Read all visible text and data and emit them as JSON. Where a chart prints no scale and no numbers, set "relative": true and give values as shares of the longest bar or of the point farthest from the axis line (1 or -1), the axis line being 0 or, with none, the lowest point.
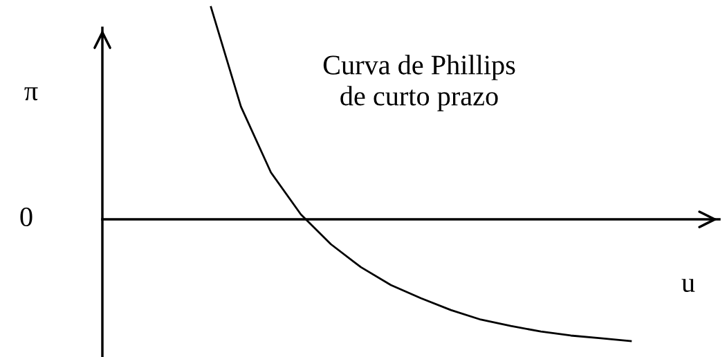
{
  "chart_data": {
    "type": "line",
    "relative": true,
    "xlabel": "u",
    "annotations": [
      "Curva de Phillips\nde curto prazo",
      "0",
      "π"
    ],
    "categories": [
      null,
      null,
      null,
      null,
      null,
      null,
      null,
      null,
      null,
      null,
      null,
      null,
      null,
      null,
      null
    ],
    "series": [
      {
        "color": "#000000",
        "values": [
          1.0,
          0.531,
          0.221,
          0.023,
          -0.117,
          -0.225,
          -0.309,
          -0.371,
          -0.427,
          -0.472,
          -0.502,
          -0.528,
          -0.547,
          -0.56,
          -0.573
        ]
      }
    ],
    "marker": "none",
    "line_style": "solid"
  }
}
